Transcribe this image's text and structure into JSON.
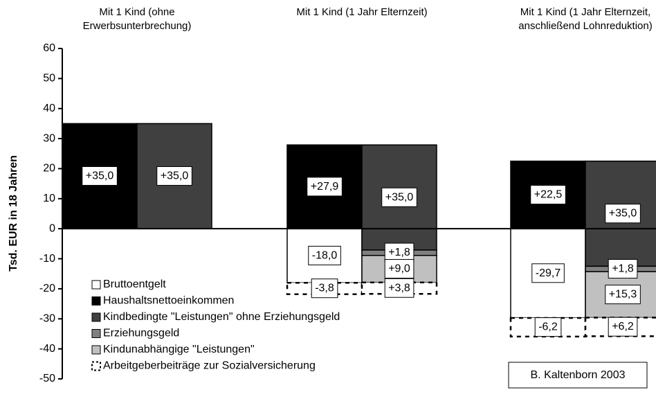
{
  "chart_data": {
    "type": "bar",
    "y_label": "Tsd. EUR in 18 Jahren",
    "categories": [
      "Mit 1 Kind (ohne Erwerbsunterbrechung)",
      "Mit 1 Kind (1 Jahr Elternzeit)",
      "Mit 1 Kind (1 Jahr Elternzeit, anschließend Lohnreduktion)"
    ],
    "series": [
      {
        "name": "Bruttoentgelt",
        "color": "#ffffff",
        "values": [
          null,
          -18.0,
          -29.7
        ],
        "value_labels": [
          null,
          "-18,0",
          "-29,7"
        ]
      },
      {
        "name": "Haushaltsnettoeinkommen",
        "color": "#000000",
        "values": [
          35.0,
          27.9,
          22.5
        ],
        "value_labels": [
          "+35,0",
          "+27,9",
          "+22,5"
        ]
      },
      {
        "name": "Kindbedingte \"Leistungen\" ohne Erziehungsgeld",
        "color": "#404040",
        "values": [
          35.0,
          35.0,
          35.0
        ],
        "value_labels": [
          "+35,0",
          "+35,0",
          "+35,0"
        ]
      },
      {
        "name": "Erziehungsgeld",
        "color": "#808080",
        "values": [
          null,
          1.8,
          1.8
        ],
        "value_labels": [
          null,
          "+1,8",
          "+1,8"
        ]
      },
      {
        "name": "Kindunabhängige \"Leistungen\"",
        "color": "#c0c0c0",
        "values": [
          null,
          9.0,
          15.3
        ],
        "value_labels": [
          null,
          "+9,0",
          "+15,3"
        ]
      },
      {
        "name": "Arbeitgeberbeiträge zur Sozialversicherung",
        "color": "#ffffff",
        "dashed": true,
        "values": [
          null,
          -3.8,
          -6.2
        ],
        "value_labels": [
          null,
          "-3,8",
          "-6,2"
        ],
        "benefit_values": [
          null,
          3.8,
          6.2
        ],
        "benefit_value_labels": [
          null,
          "+3,8",
          "+6,2"
        ]
      }
    ],
    "ylim": [
      -50,
      60
    ],
    "yticks": [
      -50,
      -40,
      -30,
      -20,
      -10,
      0,
      10,
      20,
      30,
      40,
      50,
      60
    ],
    "grid": false,
    "source": "B. Kaltenborn 2003"
  }
}
